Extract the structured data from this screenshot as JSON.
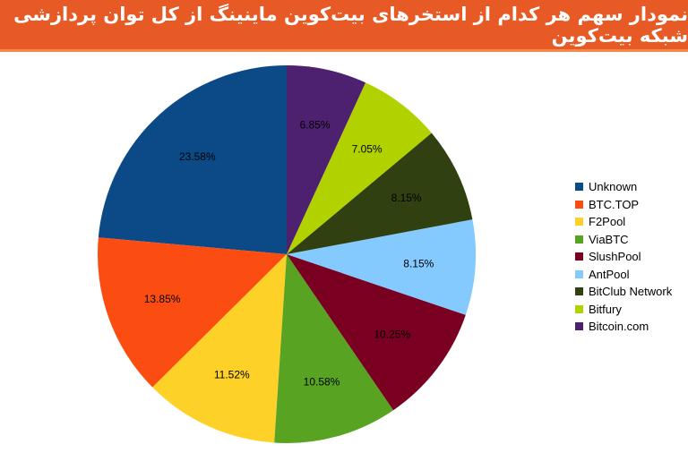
{
  "header": {
    "title": "نمودار سهم هر کدام از استخرهای بیت‌کوین ماینینگ از کل توان پردازشی شبکه بیت‌کوین"
  },
  "colors": {
    "header_bg": "#e85a25"
  },
  "chart_data": {
    "type": "pie",
    "title": "",
    "legend_position": "right",
    "start_angle_deg": 0,
    "direction": "counterclockwise",
    "slices": [
      {
        "name": "Unknown",
        "value": 23.58,
        "label": "23.58%",
        "color": "#0b4a86"
      },
      {
        "name": "BTC.TOP",
        "value": 13.85,
        "label": "13.85%",
        "color": "#fb4d12"
      },
      {
        "name": "F2Pool",
        "value": 11.52,
        "label": "11.52%",
        "color": "#fdd127"
      },
      {
        "name": "ViaBTC",
        "value": 10.58,
        "label": "10.58%",
        "color": "#58a322"
      },
      {
        "name": "SlushPool",
        "value": 10.25,
        "label": "10.25%",
        "color": "#7a0021"
      },
      {
        "name": "AntPool",
        "value": 8.15,
        "label": "8.15%",
        "color": "#84caff"
      },
      {
        "name": "BitClub Network",
        "value": 8.15,
        "label": "8.15%",
        "color": "#304011"
      },
      {
        "name": "Bitfury",
        "value": 7.05,
        "label": "7.05%",
        "color": "#b2d200"
      },
      {
        "name": "Bitcoin.com",
        "value": 6.85,
        "label": "6.85%",
        "color": "#4d2170"
      }
    ]
  }
}
